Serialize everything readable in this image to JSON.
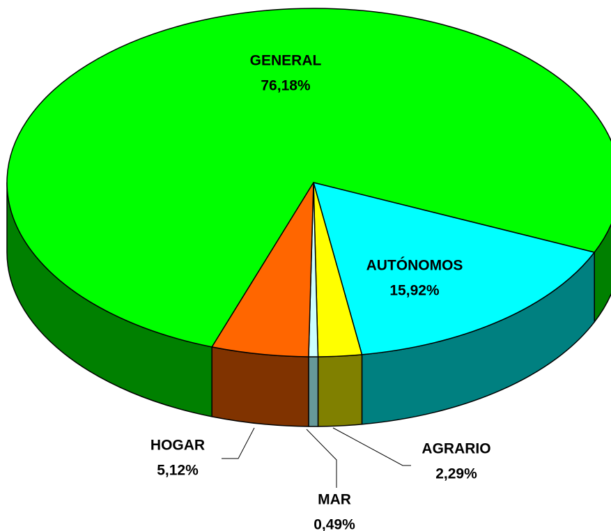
{
  "chart_data": {
    "type": "pie3d",
    "categories": [
      "GENERAL",
      "AUTÓNOMOS",
      "AGRARIO",
      "MAR",
      "HOGAR"
    ],
    "values": [
      76.18,
      15.92,
      2.29,
      0.49,
      5.12
    ],
    "value_labels": [
      "76,18%",
      "15,92%",
      "2,29%",
      "0,49%",
      "5,12%"
    ],
    "colors": [
      "#00ff00",
      "#00ffff",
      "#ffff00",
      "#ccffff",
      "#ff6600"
    ],
    "side_colors": [
      "#008000",
      "#008080",
      "#808000",
      "#669999",
      "#803300"
    ]
  }
}
